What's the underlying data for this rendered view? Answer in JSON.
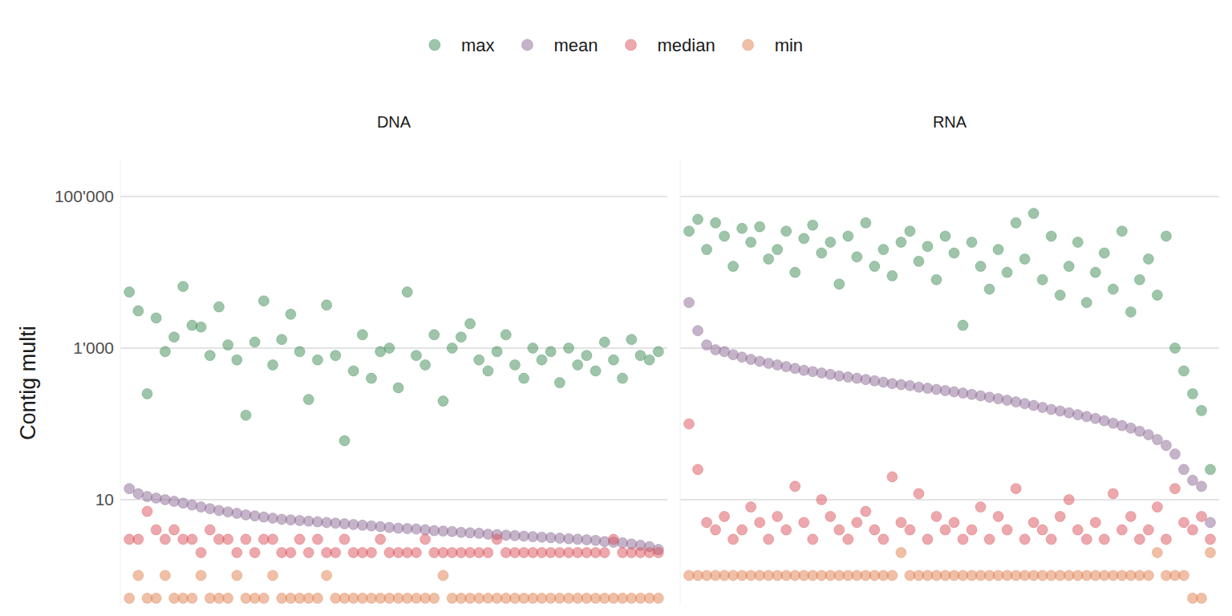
{
  "chart_data": [
    {
      "type": "scatter",
      "title": "DNA",
      "y_label": "Contig multi",
      "log": "y",
      "grid": true,
      "legend": "top",
      "tick_labels": "y",
      "xlim": [
        0,
        61
      ],
      "ylim": [
        0.4,
        300000
      ],
      "yticks": [
        10,
        {
          "value": 1000,
          "label": "1'000"
        },
        {
          "value": 100000,
          "label": "100'000"
        }
      ],
      "x": [
        1,
        2,
        3,
        4,
        5,
        6,
        7,
        8,
        9,
        10,
        11,
        12,
        13,
        14,
        15,
        16,
        17,
        18,
        19,
        20,
        21,
        22,
        23,
        24,
        25,
        26,
        27,
        28,
        29,
        30,
        31,
        32,
        33,
        34,
        35,
        36,
        37,
        38,
        39,
        40,
        41,
        42,
        43,
        44,
        45,
        46,
        47,
        48,
        49,
        50,
        51,
        52,
        53,
        54,
        55,
        56,
        57,
        58,
        59,
        60
      ],
      "series": [
        {
          "name": "max",
          "color": "#3d8b55",
          "marker": "circle",
          "values": [
            5500,
            3100,
            250,
            2500,
            900,
            1400,
            6500,
            2000,
            1900,
            800,
            3500,
            1100,
            700,
            130,
            1200,
            4200,
            600,
            1300,
            2800,
            900,
            210,
            700,
            3700,
            800,
            60,
            500,
            1500,
            400,
            900,
            1000,
            300,
            5500,
            800,
            600,
            1500,
            200,
            1000,
            1400,
            2100,
            700,
            500,
            900,
            1500,
            600,
            400,
            1000,
            700,
            900,
            350,
            1000,
            600,
            800,
            500,
            1200,
            700,
            400,
            1300,
            800,
            700,
            900
          ]
        },
        {
          "name": "mean",
          "color": "#8c6a94",
          "marker": "circle",
          "values": [
            14,
            12,
            11,
            10.5,
            10,
            9.5,
            9,
            8.5,
            8,
            7.6,
            7.2,
            6.9,
            6.6,
            6.3,
            6.1,
            5.9,
            5.7,
            5.5,
            5.4,
            5.3,
            5.2,
            5.1,
            5.0,
            4.9,
            4.8,
            4.7,
            4.6,
            4.5,
            4.4,
            4.3,
            4.2,
            4.15,
            4.1,
            4.0,
            3.9,
            3.85,
            3.8,
            3.7,
            3.65,
            3.6,
            3.5,
            3.45,
            3.4,
            3.35,
            3.3,
            3.25,
            3.2,
            3.15,
            3.1,
            3.05,
            3.0,
            2.95,
            2.9,
            2.8,
            2.75,
            2.7,
            2.6,
            2.5,
            2.4,
            2.2
          ]
        },
        {
          "name": "median",
          "color": "#d9525a",
          "marker": "circle",
          "values": [
            3,
            3,
            7,
            4,
            3,
            4,
            3,
            3,
            2,
            4,
            3,
            3,
            2,
            3,
            2,
            3,
            3,
            2,
            2,
            3,
            2,
            3,
            2,
            2,
            3,
            2,
            2,
            2,
            3,
            2,
            2,
            2,
            2,
            3,
            2,
            2,
            2,
            2,
            2,
            2,
            2,
            3,
            2,
            2,
            2,
            2,
            2,
            2,
            2,
            2,
            2,
            2,
            2,
            2,
            3,
            2,
            2,
            2,
            2,
            2
          ]
        },
        {
          "name": "min",
          "color": "#e0804f",
          "marker": "circle",
          "values": [
            0.5,
            1,
            0.5,
            0.5,
            1,
            0.5,
            0.5,
            0.5,
            1,
            0.5,
            0.5,
            0.5,
            1,
            0.5,
            0.5,
            0.5,
            1,
            0.5,
            0.5,
            0.5,
            0.5,
            0.5,
            1,
            0.5,
            0.5,
            0.5,
            0.5,
            0.5,
            0.5,
            0.5,
            0.5,
            0.5,
            0.5,
            0.5,
            0.5,
            1,
            0.5,
            0.5,
            0.5,
            0.5,
            0.5,
            0.5,
            0.5,
            0.5,
            0.5,
            0.5,
            0.5,
            0.5,
            0.5,
            0.5,
            0.5,
            0.5,
            0.5,
            0.5,
            0.5,
            0.5,
            0.5,
            0.5,
            0.5,
            0.5
          ]
        }
      ]
    },
    {
      "type": "scatter",
      "title": "RNA",
      "log": "y",
      "grid": true,
      "tick_labels": false,
      "xlim": [
        0,
        61
      ],
      "ylim": [
        0.4,
        300000
      ],
      "yticks": [
        10,
        {
          "value": 1000,
          "label": "1'000"
        },
        {
          "value": 100000,
          "label": "100'000"
        }
      ],
      "x": [
        1,
        2,
        3,
        4,
        5,
        6,
        7,
        8,
        9,
        10,
        11,
        12,
        13,
        14,
        15,
        16,
        17,
        18,
        19,
        20,
        21,
        22,
        23,
        24,
        25,
        26,
        27,
        28,
        29,
        30,
        31,
        32,
        33,
        34,
        35,
        36,
        37,
        38,
        39,
        40,
        41,
        42,
        43,
        44,
        45,
        46,
        47,
        48,
        49,
        50,
        51,
        52,
        53,
        54,
        55,
        56,
        57,
        58,
        59,
        60
      ],
      "series": [
        {
          "name": "max",
          "color": "#3d8b55",
          "marker": "circle",
          "values": [
            35000,
            50000,
            20000,
            45000,
            30000,
            12000,
            38000,
            25000,
            40000,
            15000,
            20000,
            35000,
            10000,
            28000,
            42000,
            18000,
            25000,
            7000,
            30000,
            16000,
            45000,
            12000,
            20000,
            9000,
            25000,
            35000,
            14000,
            22000,
            8000,
            30000,
            18000,
            2000,
            25000,
            12000,
            6000,
            20000,
            10000,
            45000,
            15000,
            60000,
            8000,
            30000,
            5000,
            12000,
            25000,
            4000,
            10000,
            18000,
            6000,
            35000,
            3000,
            8000,
            15000,
            5000,
            30000,
            1000,
            500,
            250,
            150,
            25
          ]
        },
        {
          "name": "mean",
          "color": "#8c6a94",
          "marker": "circle",
          "values": [
            4000,
            1700,
            1100,
            950,
            900,
            820,
            760,
            710,
            670,
            630,
            600,
            570,
            540,
            510,
            490,
            470,
            450,
            430,
            415,
            400,
            385,
            370,
            355,
            340,
            330,
            320,
            305,
            295,
            285,
            275,
            265,
            255,
            245,
            235,
            225,
            215,
            205,
            195,
            185,
            175,
            165,
            155,
            148,
            140,
            132,
            125,
            118,
            110,
            102,
            95,
            88,
            80,
            72,
            62,
            52,
            40,
            25,
            18,
            15,
            5
          ]
        },
        {
          "name": "median",
          "color": "#d9525a",
          "marker": "circle",
          "values": [
            100,
            25,
            5,
            4,
            6,
            3,
            4,
            8,
            5,
            3,
            6,
            4,
            15,
            5,
            3,
            10,
            6,
            4,
            3,
            5,
            7,
            4,
            3,
            20,
            5,
            4,
            12,
            3,
            6,
            4,
            5,
            3,
            4,
            8,
            3,
            6,
            4,
            14,
            3,
            5,
            4,
            3,
            6,
            10,
            4,
            3,
            5,
            3,
            12,
            4,
            6,
            3,
            4,
            8,
            3,
            14,
            5,
            4,
            6,
            3
          ]
        },
        {
          "name": "min",
          "color": "#e0804f",
          "marker": "circle",
          "values": [
            1,
            1,
            1,
            1,
            1,
            1,
            1,
            1,
            1,
            1,
            1,
            1,
            1,
            1,
            1,
            1,
            1,
            1,
            1,
            1,
            1,
            1,
            1,
            1,
            2,
            1,
            1,
            1,
            1,
            1,
            1,
            1,
            1,
            1,
            1,
            1,
            1,
            1,
            1,
            1,
            1,
            1,
            1,
            1,
            1,
            1,
            1,
            1,
            1,
            1,
            1,
            1,
            1,
            2,
            1,
            1,
            1,
            0.5,
            0.5,
            2
          ]
        }
      ]
    }
  ]
}
